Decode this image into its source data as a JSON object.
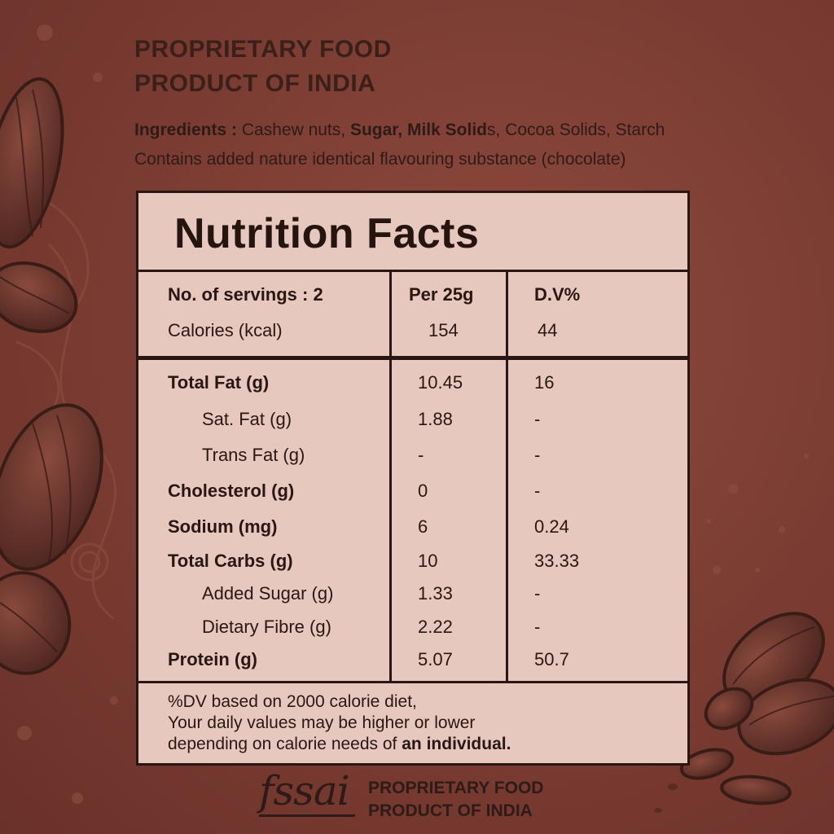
{
  "header": {
    "line1": "PROPRIETARY FOOD",
    "line2": "PRODUCT OF INDIA"
  },
  "ingredients": {
    "label": "Ingredients :",
    "item1": "Cashew nuts,",
    "item2_bold": "Sugar,",
    "item3_bold": "Milk Solid",
    "item3_suffix": "s,",
    "item4": "Cocoa Solids, Starch",
    "note": "Contains added nature identical flavouring substance (chocolate)"
  },
  "nutrition": {
    "title": "Nutrition Facts",
    "servings_label": "No. of servings : 2",
    "col_per": "Per 25g",
    "col_dv": "D.V%",
    "calories": {
      "label": "Calories (kcal)",
      "per": "154",
      "dv": "44"
    },
    "rows": [
      {
        "label": "Total Fat (g)",
        "per": "10.45",
        "dv": "16"
      },
      {
        "label": "Sat. Fat (g)",
        "per": "1.88",
        "dv": "-"
      },
      {
        "label": "Trans Fat (g)",
        "per": "-",
        "dv": "-"
      },
      {
        "label": "Cholesterol (g)",
        "per": "0",
        "dv": "-"
      },
      {
        "label": "Sodium (mg)",
        "per": "6",
        "dv": "0.24"
      },
      {
        "label": "Total Carbs (g)",
        "per": "10",
        "dv": "33.33"
      },
      {
        "label": "Added Sugar (g)",
        "per": "1.33",
        "dv": "-"
      },
      {
        "label": "Dietary Fibre (g)",
        "per": "2.22",
        "dv": "-"
      },
      {
        "label": "Protein (g)",
        "per": "5.07",
        "dv": "50.7"
      }
    ],
    "footnote_line1": "%DV based on 2000 calorie diet,",
    "footnote_line2": "Your daily values may be higher or lower",
    "footnote_line3": "depending on calorie needs of",
    "footnote_line3_bold": "an individual."
  },
  "footer": {
    "logo": "fssai",
    "line1": "PROPRIETARY FOOD",
    "line2": "PRODUCT OF INDIA"
  },
  "colors": {
    "background": "#7d3e34",
    "panel": "#e7c8be",
    "ink": "#2a1713",
    "almond": "#6e3a30"
  }
}
